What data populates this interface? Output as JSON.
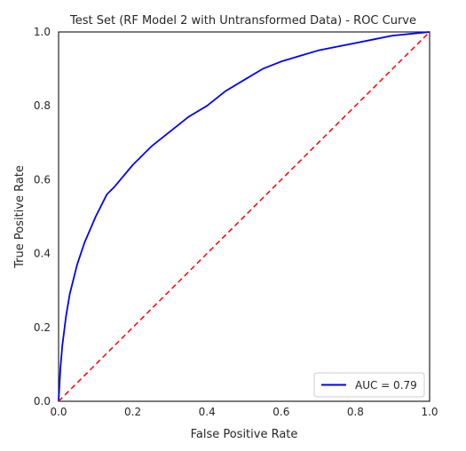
{
  "chart_data": {
    "type": "line",
    "title": "Test Set (RF Model 2 with Untransformed Data) - ROC Curve",
    "xlabel": "False Positive Rate",
    "ylabel": "True Positive Rate",
    "xlim": [
      0.0,
      1.0
    ],
    "ylim": [
      0.0,
      1.0
    ],
    "xticks": [
      "0.0",
      "0.2",
      "0.4",
      "0.6",
      "0.8",
      "1.0"
    ],
    "yticks": [
      "0.0",
      "0.2",
      "0.4",
      "0.6",
      "0.8",
      "1.0"
    ],
    "grid": false,
    "legend_position": "bottom-right",
    "series": [
      {
        "name": "AUC = 0.79",
        "color": "#0000ff",
        "line_style": "solid",
        "x": [
          0.0,
          0.005,
          0.01,
          0.02,
          0.03,
          0.05,
          0.07,
          0.1,
          0.13,
          0.15,
          0.2,
          0.25,
          0.3,
          0.35,
          0.4,
          0.45,
          0.5,
          0.55,
          0.6,
          0.65,
          0.7,
          0.75,
          0.8,
          0.85,
          0.9,
          0.95,
          1.0
        ],
        "y": [
          0.0,
          0.09,
          0.15,
          0.23,
          0.29,
          0.37,
          0.43,
          0.5,
          0.56,
          0.58,
          0.64,
          0.69,
          0.73,
          0.77,
          0.8,
          0.84,
          0.87,
          0.9,
          0.92,
          0.935,
          0.95,
          0.96,
          0.97,
          0.98,
          0.99,
          0.995,
          1.0
        ]
      },
      {
        "name": "",
        "color": "#ff0000",
        "line_style": "dashed",
        "x": [
          0.0,
          1.0
        ],
        "y": [
          0.0,
          1.0
        ]
      }
    ]
  }
}
